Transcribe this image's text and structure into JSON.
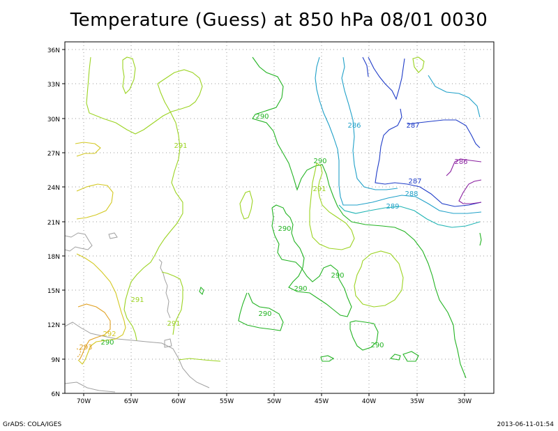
{
  "title": "Temperature (Guess) at 850 hPa 08/01 0030",
  "credit": "GrADS: COLA/IGES",
  "timestamp": "2013-06-11-01:54",
  "lat_ticks": [
    "36N",
    "33N",
    "30N",
    "27N",
    "24N",
    "21N",
    "18N",
    "15N",
    "12N",
    "9N",
    "6N"
  ],
  "lon_ticks": [
    "70W",
    "65W",
    "60W",
    "55W",
    "50W",
    "45W",
    "40W",
    "35W",
    "30W"
  ],
  "contour_labels": [
    {
      "text": "290",
      "color": "#22b322"
    },
    {
      "text": "286",
      "color": "#1fa0c8"
    },
    {
      "text": "287",
      "color": "#1f3cc8"
    },
    {
      "text": "286",
      "color": "#8a1fa0"
    },
    {
      "text": "291",
      "color": "#9bd321"
    },
    {
      "text": "290",
      "color": "#22b322"
    },
    {
      "text": "291",
      "color": "#9bd321"
    },
    {
      "text": "287",
      "color": "#1f3cc8"
    },
    {
      "text": "288",
      "color": "#1fa0c8"
    },
    {
      "text": "289",
      "color": "#1fa0c8"
    },
    {
      "text": "290",
      "color": "#22b322"
    },
    {
      "text": "290",
      "color": "#22b322"
    },
    {
      "text": "290",
      "color": "#22b322"
    },
    {
      "text": "290",
      "color": "#22b322"
    },
    {
      "text": "291",
      "color": "#9bd321"
    },
    {
      "text": "291",
      "color": "#9bd321"
    },
    {
      "text": "290",
      "color": "#22b322"
    },
    {
      "text": "292",
      "color": "#d3c821"
    },
    {
      "text": "293",
      "color": "#e0a020"
    },
    {
      "text": "290",
      "color": "#22b322"
    }
  ],
  "colors": {
    "c286": "#8a1fa0",
    "c287": "#1f3cc8",
    "c288": "#1fa0c8",
    "c289": "#1fb4b4",
    "c290": "#22b322",
    "c291": "#9bd321",
    "c292": "#d3c821",
    "c293": "#e0a020",
    "coast": "#a0a0a0"
  }
}
